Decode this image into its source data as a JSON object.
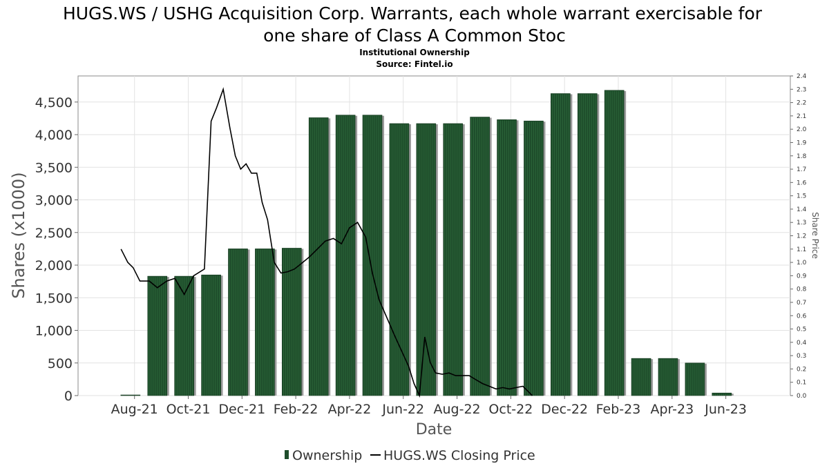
{
  "chart_data": {
    "type": "bar",
    "title": "HUGS.WS / USHG Acquisition Corp. Warrants, each whole warrant exercisable for one share of Class A Common Stoc",
    "subtitle": "Institutional Ownership",
    "source": "Source: Fintel.io",
    "xlabel": "Date",
    "ylabel": "Shares (x1000)",
    "y2label": "Share Price",
    "ylim": [
      0,
      4900
    ],
    "y2lim": [
      0,
      2.4
    ],
    "y_ticks": [
      "0",
      "500",
      "1,000",
      "1,500",
      "2,000",
      "2,500",
      "3,000",
      "3,500",
      "4,000",
      "4,500"
    ],
    "y_tick_values": [
      0,
      500,
      1000,
      1500,
      2000,
      2500,
      3000,
      3500,
      4000,
      4500
    ],
    "y2_ticks": [
      "0.0",
      "0.1",
      "0.2",
      "0.3",
      "0.4",
      "0.5",
      "0.6",
      "0.7",
      "0.8",
      "0.9",
      "1.0",
      "1.1",
      "1.2",
      "1.3",
      "1.4",
      "1.5",
      "1.6",
      "1.7",
      "1.8",
      "1.9",
      "2.0",
      "2.1",
      "2.2",
      "2.3",
      "2.4"
    ],
    "x_ticks": [
      "Aug-21",
      "Oct-21",
      "Dec-21",
      "Feb-22",
      "Apr-22",
      "Jun-22",
      "Aug-22",
      "Oct-22",
      "Dec-22",
      "Feb-23",
      "Apr-23",
      "Jun-23"
    ],
    "x_tick_months": [
      8,
      10,
      12,
      14,
      16,
      18,
      20,
      22,
      24,
      26,
      28,
      30
    ],
    "x_month_range": [
      5.9,
      32.4
    ],
    "grid": true,
    "legend_position": "bottom",
    "series": [
      {
        "name": "Ownership",
        "kind": "bar",
        "color": "#1e4d2b",
        "x_month": [
          7.85,
          8.85,
          9.85,
          10.85,
          11.85,
          12.85,
          13.85,
          14.85,
          15.85,
          16.85,
          17.85,
          18.85,
          19.85,
          20.85,
          21.85,
          22.85,
          23.85,
          24.85,
          25.85,
          26.85,
          27.85,
          28.85,
          29.85
        ],
        "values": [
          10,
          1830,
          1830,
          1850,
          2250,
          2250,
          2260,
          4260,
          4300,
          4300,
          4170,
          4170,
          4170,
          4270,
          4230,
          4210,
          4630,
          4630,
          4680,
          570,
          570,
          500,
          40
        ]
      },
      {
        "name": "HUGS.WS Closing Price",
        "kind": "line",
        "color": "#000000",
        "x_month": [
          7.5,
          7.75,
          7.95,
          8.2,
          8.55,
          8.85,
          9.2,
          9.5,
          9.85,
          10.2,
          10.6,
          10.85,
          11.05,
          11.3,
          11.55,
          11.75,
          11.95,
          12.15,
          12.35,
          12.55,
          12.75,
          12.95,
          13.2,
          13.45,
          13.7,
          13.95,
          14.2,
          14.5,
          14.8,
          15.1,
          15.4,
          15.7,
          16.0,
          16.3,
          16.6,
          16.85,
          17.1,
          17.4,
          17.7,
          17.95,
          18.2,
          18.4,
          18.6,
          18.8,
          19.0,
          19.2,
          19.45,
          19.7,
          19.95,
          20.2,
          20.45,
          20.7,
          20.95,
          21.2,
          21.45,
          21.7,
          21.95,
          22.2,
          22.45,
          22.65,
          22.8
        ],
        "values": [
          1.1,
          1.0,
          0.96,
          0.86,
          0.86,
          0.81,
          0.86,
          0.88,
          0.76,
          0.9,
          0.95,
          2.06,
          2.16,
          2.3,
          2.01,
          1.8,
          1.7,
          1.74,
          1.67,
          1.67,
          1.45,
          1.32,
          1.0,
          0.92,
          0.93,
          0.95,
          0.99,
          1.04,
          1.1,
          1.16,
          1.18,
          1.14,
          1.26,
          1.3,
          1.19,
          0.92,
          0.72,
          0.58,
          0.44,
          0.33,
          0.22,
          0.09,
          0.0,
          0.44,
          0.25,
          0.17,
          0.16,
          0.17,
          0.15,
          0.15,
          0.15,
          0.12,
          0.09,
          0.07,
          0.05,
          0.06,
          0.05,
          0.06,
          0.07,
          0.03,
          0.0
        ]
      }
    ]
  }
}
